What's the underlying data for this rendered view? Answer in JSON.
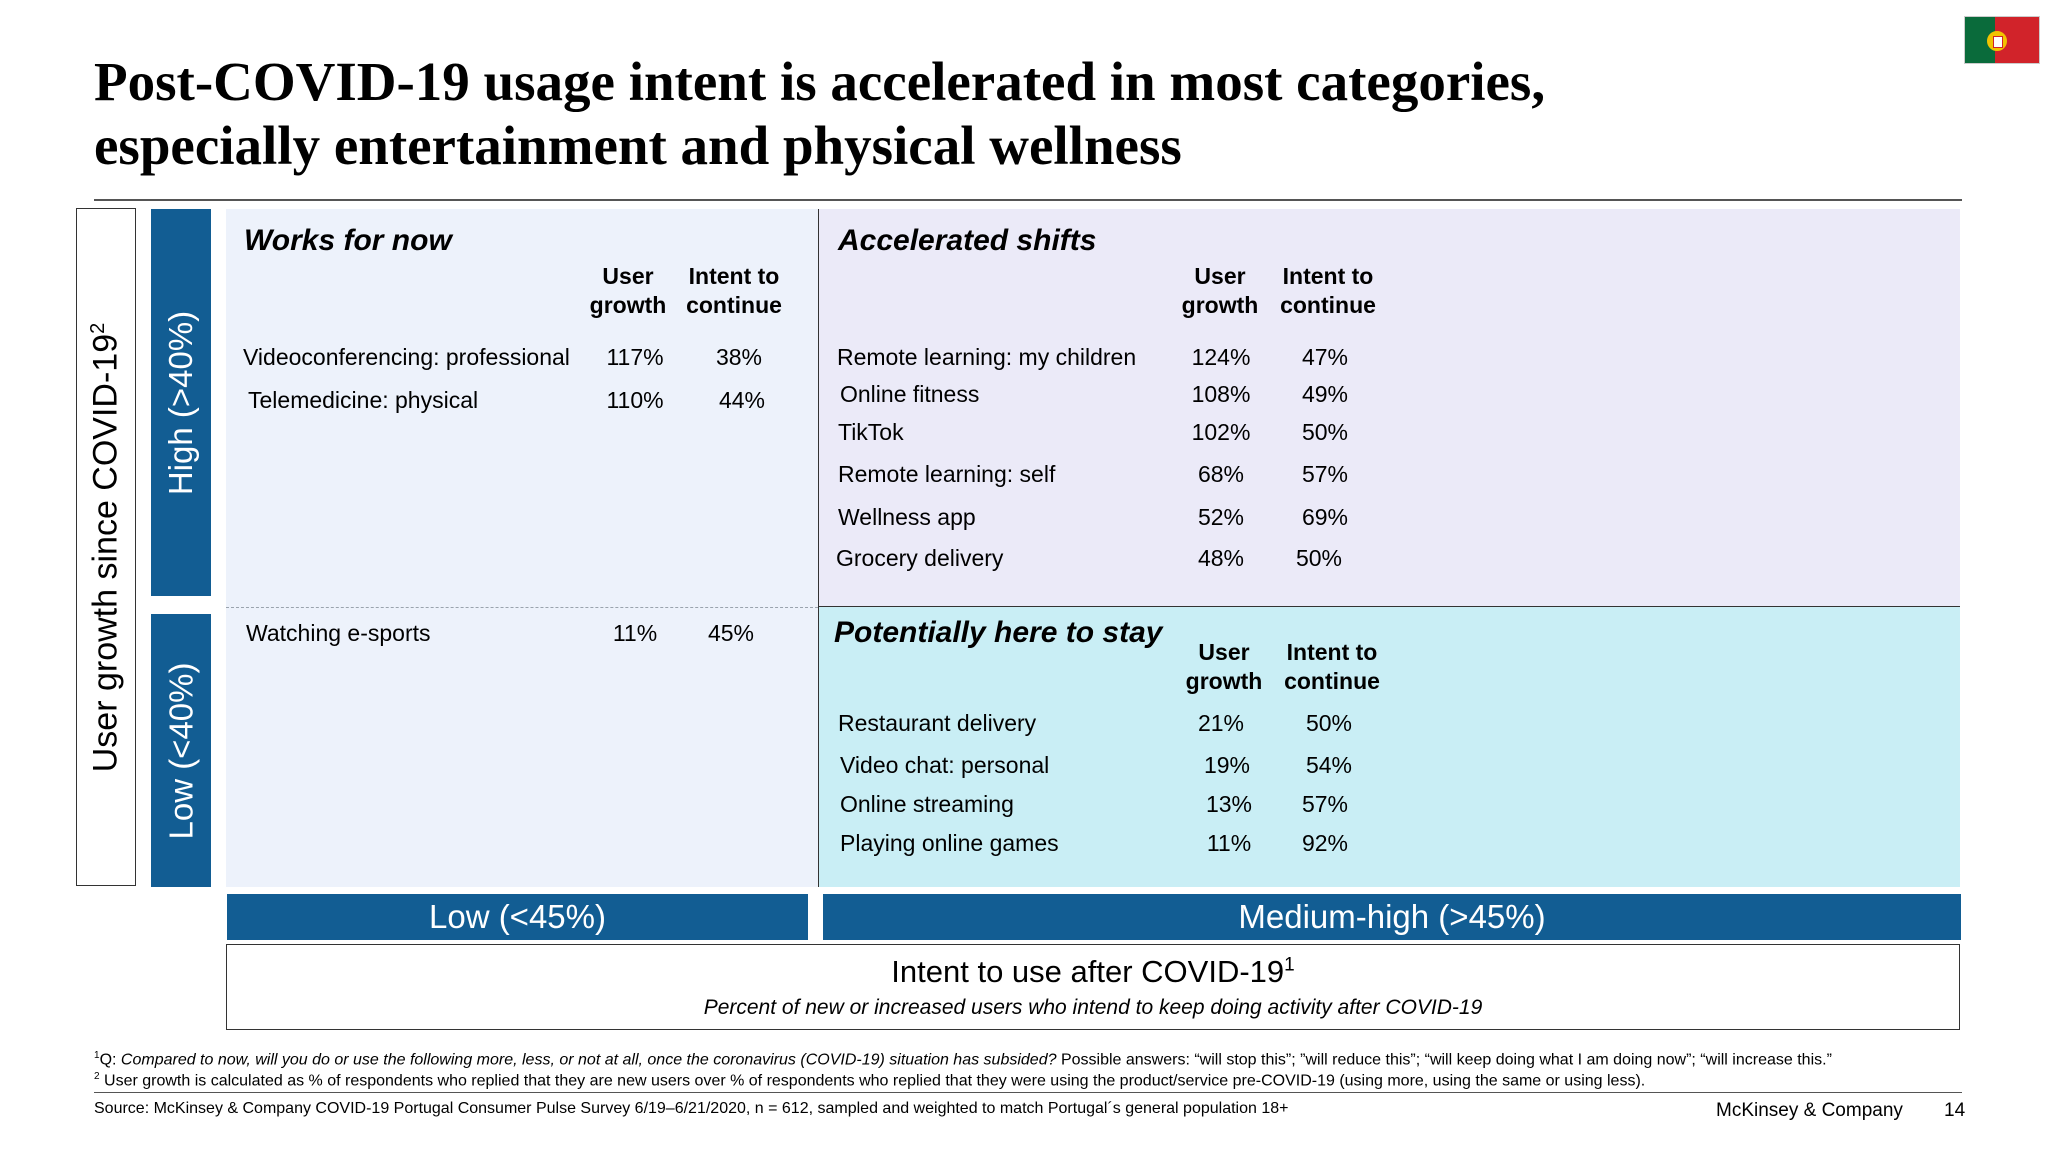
{
  "title_line1": "Post-COVID-19 usage intent is accelerated in most categories,",
  "title_line2": "especially entertainment and physical wellness",
  "flag_icon": "portugal-flag-icon",
  "chart_data": {
    "type": "table",
    "y_axis": {
      "title": "User growth since COVID-19",
      "title_sup": "2",
      "bands": [
        "High (>40%)",
        "Low (<40%)"
      ]
    },
    "x_axis": {
      "title": "Intent to use after COVID-19",
      "title_sup": "1",
      "subtitle": "Percent of new or increased users who intend to keep doing activity after COVID-19",
      "bands": [
        "Low (<45%)",
        "Medium-high (>45%)"
      ]
    },
    "columns": {
      "user_growth": "User\ngrowth",
      "intent": "Intent to\ncontinue"
    },
    "quadrants": [
      {
        "title": "Works for now",
        "rows": [
          {
            "label": "Videoconferencing: professional",
            "user_growth": "117%",
            "intent": "38%"
          },
          {
            "label": "Telemedicine: physical",
            "user_growth": "110%",
            "intent": "44%"
          }
        ]
      },
      {
        "title": "Accelerated shifts",
        "rows": [
          {
            "label": "Remote learning: my children",
            "user_growth": "124%",
            "intent": "47%"
          },
          {
            "label": "Online fitness",
            "user_growth": "108%",
            "intent": "49%"
          },
          {
            "label": "TikTok",
            "user_growth": "102%",
            "intent": "50%"
          },
          {
            "label": "Remote learning: self",
            "user_growth": "68%",
            "intent": "57%"
          },
          {
            "label": "Wellness app",
            "user_growth": "52%",
            "intent": "69%"
          },
          {
            "label": "Grocery delivery",
            "user_growth": "48%",
            "intent": "50%"
          }
        ]
      },
      {
        "title": "",
        "rows": [
          {
            "label": "Watching e-sports",
            "user_growth": "11%",
            "intent": "45%"
          }
        ]
      },
      {
        "title": "Potentially here to stay",
        "rows": [
          {
            "label": "Restaurant delivery",
            "user_growth": "21%",
            "intent": "50%"
          },
          {
            "label": "Video chat: personal",
            "user_growth": "19%",
            "intent": "54%"
          },
          {
            "label": "Online streaming",
            "user_growth": "13%",
            "intent": "57%"
          },
          {
            "label": "Playing online games",
            "user_growth": "11%",
            "intent": "92%"
          }
        ]
      }
    ]
  },
  "footnotes": {
    "fn1_marker": "1",
    "fn1_q": "Q: ",
    "fn1_italic": "Compared to now, will you do or use the following more, less, or not at all, once the coronavirus (COVID-19) situation has subsided?",
    "fn1_rest": " Possible answers: “will stop this”; ”will reduce this”; “will keep doing what I am doing now”; “will increase this.”",
    "fn2_marker": "2",
    "fn2_text": " User growth is calculated as % of respondents who replied that they are new users over % of respondents who replied that they were using the product/service pre-COVID-19 (using more, using the same or using less).",
    "source": "Source: McKinsey & Company COVID-19 Portugal Consumer Pulse Survey 6/19–6/21/2020, n = 612, sampled and weighted to match Portugal´s general population 18+"
  },
  "brand": "McKinsey & Company",
  "page_number": "14"
}
